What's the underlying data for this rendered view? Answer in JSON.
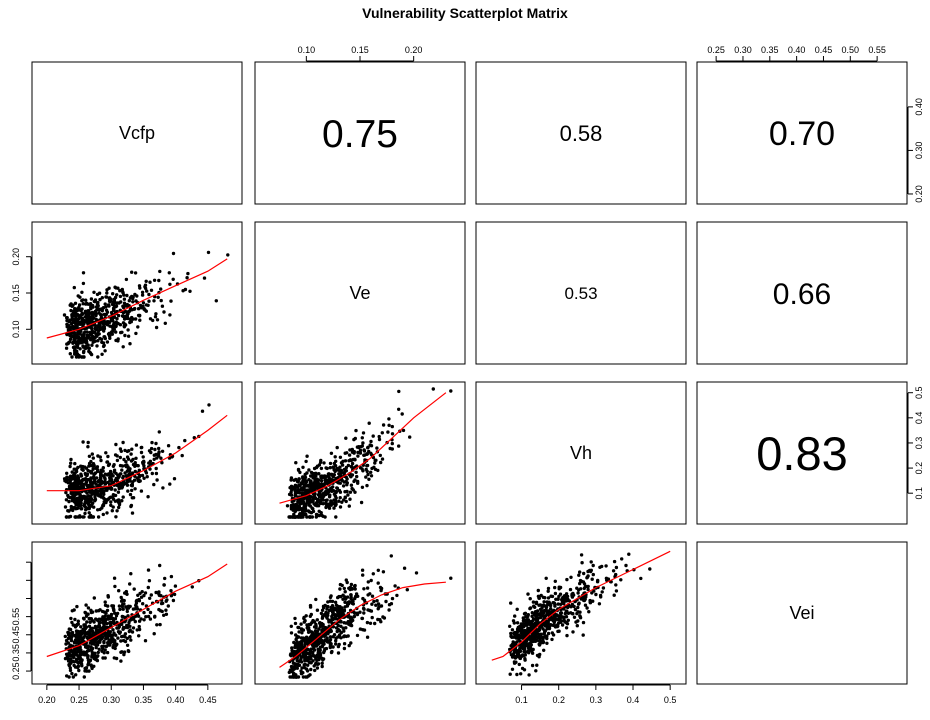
{
  "title": "Vulnerability Scatterplot Matrix",
  "chart_data": {
    "type": "scatter",
    "kind": "scatterplot-matrix",
    "variables": [
      {
        "name": "Vcfp",
        "range": [
          0.19,
          0.49
        ],
        "ticks": [
          0.2,
          0.25,
          0.3,
          0.35,
          0.4,
          0.45
        ]
      },
      {
        "name": "Ve",
        "range": [
          0.06,
          0.24
        ],
        "ticks": [
          0.1,
          0.15,
          0.2
        ]
      },
      {
        "name": "Vh",
        "range": [
          0.0,
          0.52
        ],
        "ticks": [
          0.1,
          0.2,
          0.3,
          0.4,
          0.5
        ]
      },
      {
        "name": "Vei",
        "range": [
          0.23,
          0.59
        ],
        "ticks": [
          0.25,
          0.3,
          0.35,
          0.4,
          0.45,
          0.5,
          0.55
        ]
      }
    ],
    "tick_text": {
      "Vcfp": [
        "0.20",
        "0.25",
        "0.30",
        "0.35",
        "0.40",
        "0.45"
      ],
      "Ve": [
        "0.10",
        "0.15",
        "0.20"
      ],
      "Vh": [
        "0.1",
        "0.2",
        "0.3",
        "0.4",
        "0.5"
      ],
      "Vei_top": [
        "0.25",
        "0.30",
        "0.35",
        "0.40",
        "0.45",
        "0.50",
        "0.55"
      ],
      "Vei_left": [
        "0.25",
        "0.35",
        "0.45",
        "0.55"
      ],
      "Vcfp_right": [
        "0.20",
        "0.30",
        "0.40"
      ]
    },
    "correlations": [
      {
        "row": "Vcfp",
        "col": "Ve",
        "value": "0.75"
      },
      {
        "row": "Vcfp",
        "col": "Vh",
        "value": "0.58"
      },
      {
        "row": "Vcfp",
        "col": "Vei",
        "value": "0.70"
      },
      {
        "row": "Ve",
        "col": "Vh",
        "value": "0.53"
      },
      {
        "row": "Ve",
        "col": "Vei",
        "value": "0.66"
      },
      {
        "row": "Vh",
        "col": "Vei",
        "value": "0.83"
      }
    ],
    "smoothers": [
      {
        "x": "Vcfp",
        "y": "Ve",
        "points": [
          [
            0.2,
            0.088
          ],
          [
            0.25,
            0.1
          ],
          [
            0.3,
            0.118
          ],
          [
            0.35,
            0.14
          ],
          [
            0.4,
            0.16
          ],
          [
            0.45,
            0.18
          ],
          [
            0.48,
            0.197
          ]
        ]
      },
      {
        "x": "Vcfp",
        "y": "Vh",
        "points": [
          [
            0.2,
            0.11
          ],
          [
            0.25,
            0.11
          ],
          [
            0.3,
            0.13
          ],
          [
            0.35,
            0.19
          ],
          [
            0.4,
            0.26
          ],
          [
            0.45,
            0.35
          ],
          [
            0.48,
            0.41
          ]
        ]
      },
      {
        "x": "Ve",
        "y": "Vh",
        "points": [
          [
            0.075,
            0.06
          ],
          [
            0.1,
            0.09
          ],
          [
            0.12,
            0.13
          ],
          [
            0.14,
            0.18
          ],
          [
            0.16,
            0.24
          ],
          [
            0.18,
            0.32
          ],
          [
            0.2,
            0.4
          ],
          [
            0.23,
            0.5
          ]
        ]
      },
      {
        "x": "Vcfp",
        "y": "Vei",
        "points": [
          [
            0.2,
            0.29
          ],
          [
            0.25,
            0.32
          ],
          [
            0.3,
            0.37
          ],
          [
            0.35,
            0.42
          ],
          [
            0.4,
            0.47
          ],
          [
            0.45,
            0.51
          ],
          [
            0.48,
            0.545
          ]
        ]
      },
      {
        "x": "Ve",
        "y": "Vei",
        "points": [
          [
            0.075,
            0.26
          ],
          [
            0.09,
            0.29
          ],
          [
            0.11,
            0.34
          ],
          [
            0.13,
            0.39
          ],
          [
            0.15,
            0.43
          ],
          [
            0.17,
            0.46
          ],
          [
            0.19,
            0.48
          ],
          [
            0.21,
            0.49
          ],
          [
            0.23,
            0.495
          ]
        ]
      },
      {
        "x": "Vh",
        "y": "Vei",
        "points": [
          [
            0.02,
            0.28
          ],
          [
            0.05,
            0.29
          ],
          [
            0.1,
            0.33
          ],
          [
            0.15,
            0.38
          ],
          [
            0.2,
            0.42
          ],
          [
            0.3,
            0.48
          ],
          [
            0.4,
            0.53
          ],
          [
            0.5,
            0.58
          ]
        ]
      }
    ],
    "n_points_per_panel": 650,
    "point_color": "#000000",
    "smoother_color": "#ff0000",
    "grid": false
  }
}
